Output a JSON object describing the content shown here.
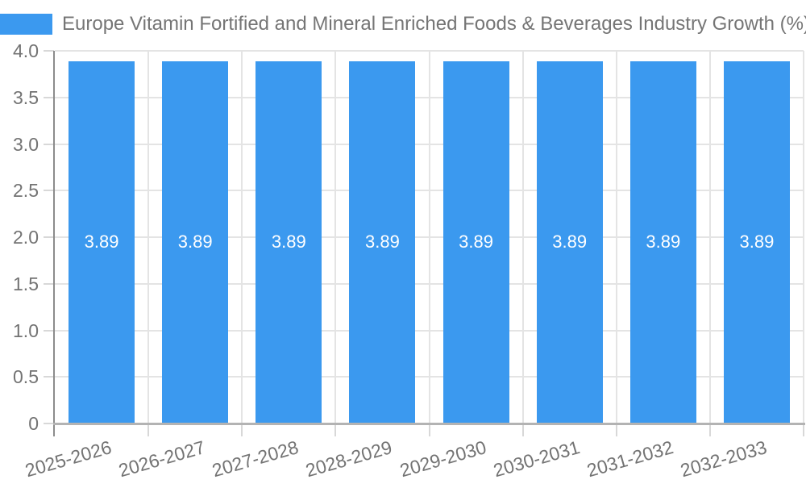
{
  "chart_data": {
    "type": "bar",
    "title": "Europe Vitamin Fortified and Mineral Enriched Foods & Beverages Industry Growth (%)",
    "categories": [
      "2025-2026",
      "2026-2027",
      "2027-2028",
      "2028-2029",
      "2029-2030",
      "2030-2031",
      "2031-2032",
      "2032-2033"
    ],
    "values": [
      3.89,
      3.89,
      3.89,
      3.89,
      3.89,
      3.89,
      3.89,
      3.89
    ],
    "bar_labels": [
      "3.89",
      "3.89",
      "3.89",
      "3.89",
      "3.89",
      "3.89",
      "3.89",
      "3.89"
    ],
    "series": [
      {
        "name": "Europe Vitamin Fortified and Mineral Enriched Foods & Beverages Industry Growth (%)",
        "values": [
          3.89,
          3.89,
          3.89,
          3.89,
          3.89,
          3.89,
          3.89,
          3.89
        ]
      }
    ],
    "xlabel": "",
    "ylabel": "",
    "ylim": [
      0,
      4
    ],
    "y_ticks": [
      0,
      0.5,
      1,
      1.5,
      2,
      2.5,
      3,
      3.5,
      4
    ],
    "y_tick_labels": [
      "0",
      "0.5",
      "1.0",
      "1.5",
      "2.0",
      "2.5",
      "3.0",
      "3.5",
      "4.0"
    ],
    "grid": true,
    "legend_position": "top-left",
    "colors": {
      "bar": "#3b99ef",
      "bar_label": "#ffffff",
      "title": "#757575",
      "axis_text": "#737373",
      "grid": "#e4e4e4",
      "axis_line": "#8c8c8c",
      "baseline": "#b3b3b3",
      "tick": "#d8d8d8",
      "background": "#ffffff"
    }
  }
}
